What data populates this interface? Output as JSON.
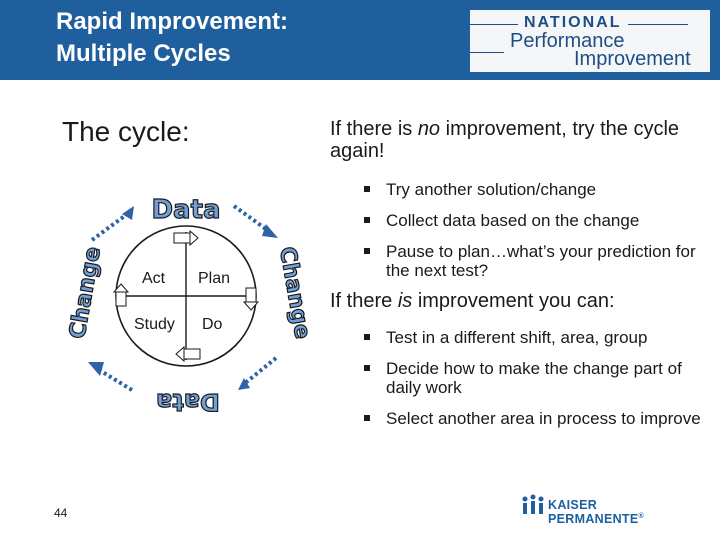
{
  "header": {
    "title_line1": "Rapid Improvement:",
    "title_line2": "Multiple Cycles",
    "logo": {
      "line1": "NATIONAL",
      "line2": "Performance",
      "line3": "Improvement"
    },
    "bg_color": "#1f5f9e"
  },
  "left": {
    "cycle_label": "The cycle:",
    "diagram": {
      "words": {
        "top": "Data",
        "bottom": "Data",
        "left": "Change",
        "right": "Change"
      },
      "quadrants": {
        "act": "Act",
        "plan": "Plan",
        "study": "Study",
        "do": "Do"
      }
    }
  },
  "right": {
    "no_improvement": {
      "before": "If there is ",
      "emph": "no",
      "after": " improvement, try the cycle again!"
    },
    "bullets_a": [
      "Try another solution/change",
      "Collect data based on the change",
      "Pause to plan…what’s your prediction for the next test?"
    ],
    "is_improvement": {
      "before": "If there ",
      "emph": "is",
      "after": " improvement you can:"
    },
    "bullets_b": [
      "Test in a different shift, area, group",
      "Decide how to make the change part of daily work",
      "Select another area in process to improve"
    ]
  },
  "footer": {
    "slide_number": "44",
    "brand": "KAISER PERMANENTE",
    "brand_mark": "®"
  }
}
